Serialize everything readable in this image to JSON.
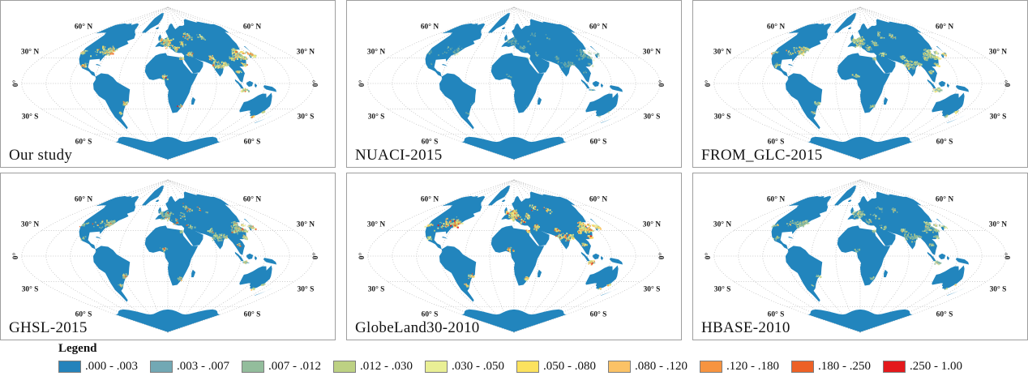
{
  "panels": [
    {
      "id": "our-study",
      "label": "Our study"
    },
    {
      "id": "nuaci-2015",
      "label": "NUACI-2015"
    },
    {
      "id": "from-glc-2015",
      "label": "FROM_GLC-2015"
    },
    {
      "id": "ghsl-2015",
      "label": "GHSL-2015"
    },
    {
      "id": "globeland30-2010",
      "label": "GlobeLand30-2010"
    },
    {
      "id": "hbase-2010",
      "label": "HBASE-2010"
    }
  ],
  "graticule": {
    "labels": [
      {
        "text": "60° N",
        "lat": 60
      },
      {
        "text": "30° N",
        "lat": 30
      },
      {
        "text": "0°",
        "lat": 0
      },
      {
        "text": "30° S",
        "lat": -30
      },
      {
        "text": "60° S",
        "lat": -60
      }
    ]
  },
  "legend": {
    "title": "Legend",
    "items": [
      {
        "label": ".000 - .003",
        "color": "#2583bb"
      },
      {
        "label": ".003 - .007",
        "color": "#72a8b4"
      },
      {
        "label": ".007 - .012",
        "color": "#93bd9c"
      },
      {
        "label": ".012 - .030",
        "color": "#bdd183"
      },
      {
        "label": ".030 - .050",
        "color": "#e9ef95"
      },
      {
        "label": ".050 - .080",
        "color": "#fce25e"
      },
      {
        "label": ".080 - .120",
        "color": "#fbc266"
      },
      {
        "label": ".120 - .180",
        "color": "#f79440"
      },
      {
        "label": ".180 - .250",
        "color": "#ed6126"
      },
      {
        "label": ".250 - 1.00",
        "color": "#e3191c"
      }
    ]
  },
  "map_style": {
    "land_color": "#2285bd",
    "graticule_color": "#b3b3b3",
    "background": "#ffffff",
    "panel_border": "#9e9e9e",
    "label_color": "#1a1a1a"
  }
}
